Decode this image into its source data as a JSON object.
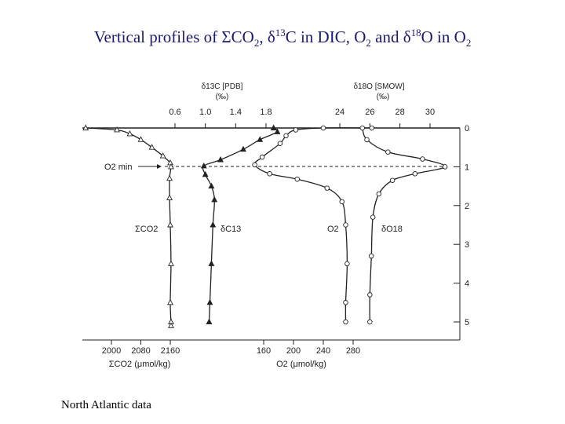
{
  "slide": {
    "title_parts": {
      "a": "Vertical profiles of ",
      "sigma": "Σ",
      "co": "CO",
      "sub2a": "2",
      "sep1": ", ",
      "delta1": "δ",
      "sup13": "13",
      "c_in_dic": "C in DIC, O",
      "sub2b": "2",
      "and": " and ",
      "delta2": "δ",
      "sup18": "18",
      "o_in_o": "O in O",
      "sub2c": "2"
    },
    "caption": "North Atlantic data"
  },
  "chart_data": {
    "type": "scatter",
    "axes": {
      "top_left_label": "δ13C [PDB]",
      "top_left_unit": "(‰)",
      "top_left_ticks": [
        "0.6",
        "1.0",
        "1.4",
        "1.8"
      ],
      "top_right_label": "δ18O [SMOW]",
      "top_right_unit": "(‰)",
      "top_right_ticks": [
        "24",
        "26",
        "28",
        "30"
      ],
      "bottom_left_label": "ΣCO2 (μmol/kg)",
      "bottom_left_ticks": [
        "2000",
        "2080",
        "2160"
      ],
      "bottom_right_label": "O2 (μmol/kg)",
      "bottom_right_ticks": [
        "160",
        "200",
        "240",
        "280"
      ],
      "right_ticks": [
        "0",
        "1",
        "2",
        "3",
        "4",
        "5"
      ]
    },
    "annotation": "O2 min",
    "series": [
      {
        "name": "ΣCO2",
        "axis": "bottom_left",
        "marker": "triangle-open",
        "points": [
          [
            1930,
            0.0
          ],
          [
            2015,
            0.05
          ],
          [
            2050,
            0.15
          ],
          [
            2080,
            0.3
          ],
          [
            2110,
            0.5
          ],
          [
            2140,
            0.72
          ],
          [
            2160,
            0.9
          ],
          [
            2162,
            1.0
          ],
          [
            2158,
            1.3
          ],
          [
            2158,
            1.8
          ],
          [
            2160,
            2.5
          ],
          [
            2162,
            3.5
          ],
          [
            2160,
            4.5
          ],
          [
            2162,
            5.0
          ],
          [
            2162,
            5.1
          ]
        ]
      },
      {
        "name": "δC13",
        "axis": "top_left",
        "marker": "triangle-filled",
        "points": [
          [
            1.9,
            0.0
          ],
          [
            1.95,
            0.1
          ],
          [
            1.72,
            0.3
          ],
          [
            1.5,
            0.55
          ],
          [
            1.2,
            0.82
          ],
          [
            0.98,
            0.98
          ],
          [
            1.0,
            1.2
          ],
          [
            1.08,
            1.5
          ],
          [
            1.12,
            1.85
          ],
          [
            1.1,
            2.5
          ],
          [
            1.08,
            3.5
          ],
          [
            1.06,
            4.5
          ],
          [
            1.05,
            5.0
          ]
        ]
      },
      {
        "name": "O2",
        "axis": "bottom_right",
        "marker": "circle-open",
        "points": [
          [
            305,
            0.0
          ],
          [
            240,
            0.0
          ],
          [
            203,
            0.05
          ],
          [
            190,
            0.2
          ],
          [
            182,
            0.4
          ],
          [
            158,
            0.75
          ],
          [
            148,
            0.95
          ],
          [
            168,
            1.18
          ],
          [
            205,
            1.32
          ],
          [
            245,
            1.55
          ],
          [
            265,
            1.9
          ],
          [
            270,
            2.5
          ],
          [
            272,
            3.5
          ],
          [
            270,
            4.5
          ],
          [
            270,
            5.0
          ]
        ]
      },
      {
        "name": "δO18",
        "axis": "top_right",
        "marker": "circle-open",
        "points": [
          [
            25.5,
            0.0
          ],
          [
            25.8,
            0.3
          ],
          [
            27.2,
            0.62
          ],
          [
            29.5,
            0.8
          ],
          [
            31.0,
            1.0
          ],
          [
            29.0,
            1.18
          ],
          [
            27.5,
            1.35
          ],
          [
            26.6,
            1.7
          ],
          [
            26.2,
            2.3
          ],
          [
            26.1,
            3.3
          ],
          [
            26.0,
            4.3
          ],
          [
            26.0,
            5.0
          ]
        ]
      }
    ]
  }
}
